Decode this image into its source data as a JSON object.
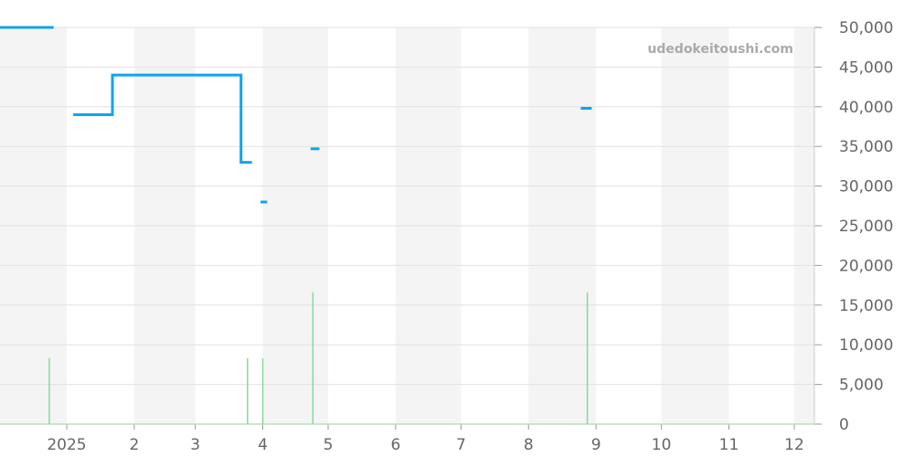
{
  "watermark": "udedokeitoushi.com",
  "chart_data": {
    "type": "line",
    "title": "",
    "xlabel": "",
    "ylabel": "",
    "ylim": [
      0,
      50000
    ],
    "xlim": [
      "2024-12-01",
      "2025-12-10"
    ],
    "grid": true,
    "y_ticks": [
      "0",
      "5,000",
      "10,000",
      "15,000",
      "20,000",
      "25,000",
      "30,000",
      "35,000",
      "40,000",
      "45,000",
      "50,000"
    ],
    "x_ticks": [
      {
        "date": "2025-01-01",
        "label": "2025"
      },
      {
        "date": "2025-02-01",
        "label": "2"
      },
      {
        "date": "2025-03-01",
        "label": "3"
      },
      {
        "date": "2025-04-01",
        "label": "4"
      },
      {
        "date": "2025-05-01",
        "label": "5"
      },
      {
        "date": "2025-06-01",
        "label": "6"
      },
      {
        "date": "2025-07-01",
        "label": "7"
      },
      {
        "date": "2025-08-01",
        "label": "8"
      },
      {
        "date": "2025-09-01",
        "label": "9"
      },
      {
        "date": "2025-10-01",
        "label": "10"
      },
      {
        "date": "2025-11-01",
        "label": "11"
      },
      {
        "date": "2025-12-01",
        "label": "12"
      }
    ],
    "shaded_months": [
      "2024-12",
      "2025-02",
      "2025-04",
      "2025-06",
      "2025-08",
      "2025-10",
      "2025-12"
    ],
    "colors": {
      "price": "#0ea5e9",
      "volume": "#86d99a",
      "shade": "#f4f4f4",
      "grid": "#e2e2e2"
    },
    "price_segments": [
      {
        "points": [
          [
            "2024-12-01",
            50000
          ],
          [
            "2024-12-26",
            50000
          ]
        ]
      },
      {
        "points": [
          [
            "2025-01-04",
            39000
          ],
          [
            "2025-01-22",
            39000
          ],
          [
            "2025-01-22",
            44000
          ],
          [
            "2025-03-22",
            44000
          ],
          [
            "2025-03-22",
            33000
          ],
          [
            "2025-03-27",
            33000
          ]
        ]
      },
      {
        "points": [
          [
            "2025-03-31",
            28000
          ],
          [
            "2025-04-03",
            28000
          ]
        ]
      },
      {
        "points": [
          [
            "2025-04-23",
            34700
          ],
          [
            "2025-04-27",
            34700
          ]
        ]
      },
      {
        "points": [
          [
            "2025-08-25",
            39800
          ],
          [
            "2025-08-30",
            39800
          ]
        ]
      }
    ],
    "volume": [
      {
        "date": "2024-12-24",
        "value": 8300
      },
      {
        "date": "2025-03-25",
        "value": 8300
      },
      {
        "date": "2025-04-01",
        "value": 8300
      },
      {
        "date": "2025-04-24",
        "value": 16600
      },
      {
        "date": "2025-08-28",
        "value": 16600
      }
    ]
  }
}
